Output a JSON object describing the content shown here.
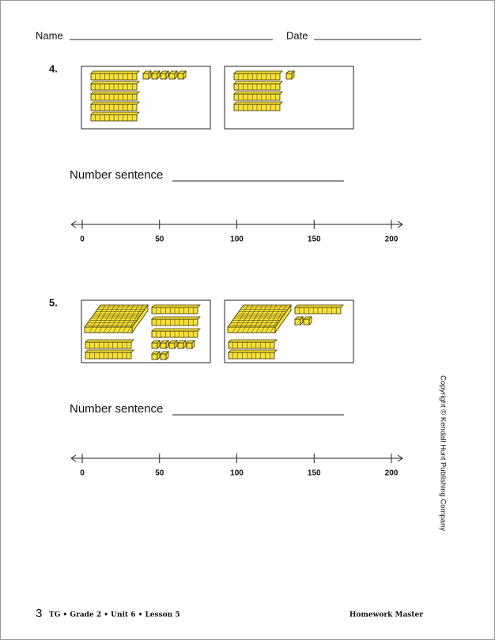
{
  "header": {
    "name_label": "Name",
    "date_label": "Date"
  },
  "problems": [
    {
      "number": "4.",
      "models": [
        {
          "hundreds": 0,
          "tens": 5,
          "ones": 5
        },
        {
          "hundreds": 0,
          "tens": 4,
          "ones": 1
        }
      ],
      "sentence_label": "Number sentence",
      "number_line": {
        "ticks": [
          0,
          50,
          100,
          150,
          200
        ]
      }
    },
    {
      "number": "5.",
      "models": [
        {
          "hundreds": 1,
          "tens": 5,
          "ones": 7
        },
        {
          "hundreds": 1,
          "tens": 3,
          "ones": 2
        }
      ],
      "sentence_label": "Number sentence",
      "number_line": {
        "ticks": [
          0,
          50,
          100,
          150,
          200
        ]
      }
    }
  ],
  "copyright": "Copyright © Kendall Hunt Publishing Company",
  "footer": {
    "page": "3",
    "course": "TG • Grade 2 • Unit 6 • Lesson 5",
    "kind": "Homework Master"
  }
}
